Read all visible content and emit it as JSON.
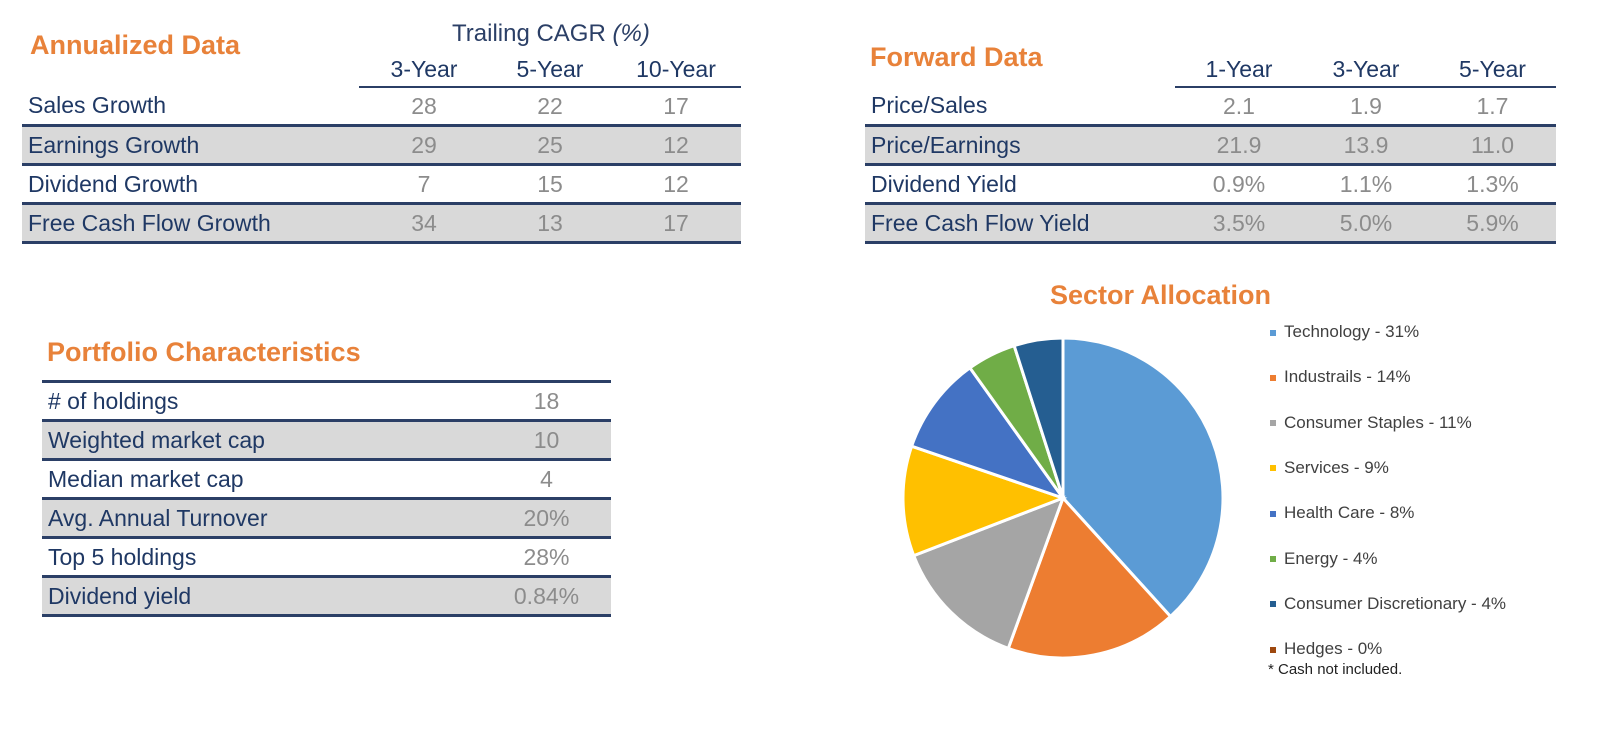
{
  "annualized": {
    "title": "Annualized Data",
    "caption_prefix": "Trailing CAGR ",
    "caption_unit": "(%)",
    "columns": [
      "3-Year",
      "5-Year",
      "10-Year"
    ],
    "rows": [
      {
        "label": "Sales Growth",
        "values": [
          "28",
          "22",
          "17"
        ]
      },
      {
        "label": "Earnings Growth",
        "values": [
          "29",
          "25",
          "12"
        ]
      },
      {
        "label": "Dividend Growth",
        "values": [
          "7",
          "15",
          "12"
        ]
      },
      {
        "label": "Free Cash Flow Growth",
        "values": [
          "34",
          "13",
          "17"
        ]
      }
    ]
  },
  "forward": {
    "title": "Forward Data",
    "columns": [
      "1-Year",
      "3-Year",
      "5-Year"
    ],
    "rows": [
      {
        "label": "Price/Sales",
        "values": [
          "2.1",
          "1.9",
          "1.7"
        ]
      },
      {
        "label": "Price/Earnings",
        "values": [
          "21.9",
          "13.9",
          "11.0"
        ]
      },
      {
        "label": "Dividend Yield",
        "values": [
          "0.9%",
          "1.1%",
          "1.3%"
        ]
      },
      {
        "label": "Free Cash Flow Yield",
        "values": [
          "3.5%",
          "5.0%",
          "5.9%"
        ]
      }
    ]
  },
  "portfolio": {
    "title": "Portfolio Characteristics",
    "rows": [
      {
        "label": "# of holdings",
        "value": "18"
      },
      {
        "label": "Weighted market cap",
        "value": "10"
      },
      {
        "label": "Median market cap",
        "value": "4"
      },
      {
        "label": "Avg. Annual Turnover",
        "value": "20%"
      },
      {
        "label": "Top 5 holdings",
        "value": "28%"
      },
      {
        "label": "Dividend yield",
        "value": "0.84%"
      }
    ]
  },
  "colors": {
    "title_orange": "#E8823A",
    "navy": "#2B3F66",
    "row_shade": "#D9D9D9",
    "value_grey": "#8C8C8C"
  },
  "chart_data": {
    "type": "pie",
    "title": "Sector Allocation",
    "slices": [
      {
        "label": "Technology - 31%",
        "value": 31,
        "color": "#5B9BD5"
      },
      {
        "label": "Industrails - 14%",
        "value": 14,
        "color": "#ED7D31"
      },
      {
        "label": "Consumer Staples - 11%",
        "value": 11,
        "color": "#A5A5A5"
      },
      {
        "label": "Services - 9%",
        "value": 9,
        "color": "#FFC000"
      },
      {
        "label": "Health Care - 8%",
        "value": 8,
        "color": "#4472C4"
      },
      {
        "label": "Energy - 4%",
        "value": 4,
        "color": "#70AD47"
      },
      {
        "label": "Consumer Discretionary - 4%",
        "value": 4,
        "color": "#255E91"
      },
      {
        "label": "Hedges - 0%",
        "value": 0,
        "color": "#9E480E"
      }
    ],
    "legend_position": "right",
    "footnote": "* Cash not included."
  }
}
